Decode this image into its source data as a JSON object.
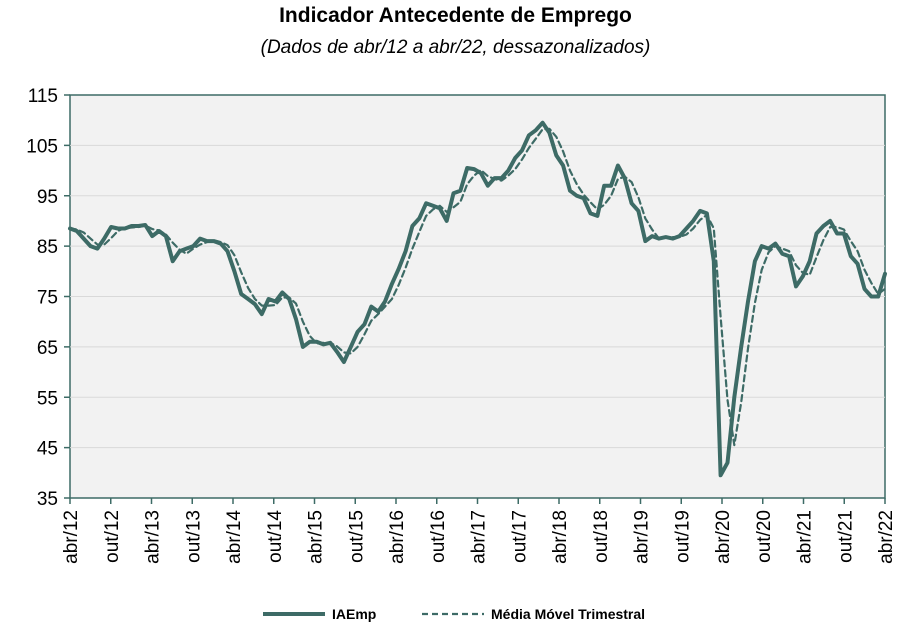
{
  "chart_data": {
    "type": "line",
    "title": "Indicador Antecedente de Emprego",
    "subtitle": "(Dados de abr/12 a abr/22, dessazonalizados)",
    "xlabel": "",
    "ylabel": "",
    "ylim": [
      35,
      115
    ],
    "yticks": [
      35,
      45,
      55,
      65,
      75,
      85,
      95,
      105,
      115
    ],
    "xtick_labels": [
      "abr/12",
      "out/12",
      "abr/13",
      "out/13",
      "abr/14",
      "out/14",
      "abr/15",
      "out/15",
      "abr/16",
      "out/16",
      "abr/17",
      "out/17",
      "abr/18",
      "out/18",
      "abr/19",
      "out/19",
      "abr/20",
      "out/20",
      "abr/21",
      "out/21",
      "abr/22"
    ],
    "grid": true,
    "legend_position": "bottom",
    "colors": {
      "series": "#3d6b66",
      "plot_bg": "#f2f2f2",
      "grid": "#d9d9d9",
      "border": "#3d6b66"
    },
    "series": [
      {
        "name": "IAEmp",
        "style": "solid",
        "values": [
          88.5,
          88.0,
          86.5,
          85.0,
          84.5,
          86.5,
          88.8,
          88.5,
          88.5,
          89.0,
          89.0,
          89.2,
          87.0,
          88.0,
          87.0,
          82.0,
          84.0,
          84.5,
          85.0,
          86.5,
          86.0,
          86.0,
          85.5,
          84.0,
          80.0,
          75.5,
          74.5,
          73.5,
          71.5,
          74.5,
          74.0,
          75.8,
          74.5,
          70.5,
          65.0,
          66.0,
          66.0,
          65.5,
          65.8,
          64.0,
          62.0,
          65.0,
          68.0,
          69.5,
          73.0,
          72.0,
          74.0,
          77.5,
          80.5,
          84.0,
          89.0,
          90.5,
          93.5,
          93.0,
          92.5,
          90.0,
          95.5,
          96.0,
          100.5,
          100.3,
          99.5,
          97.0,
          98.5,
          98.5,
          100.0,
          102.5,
          104.0,
          107.0,
          108.0,
          109.5,
          107.5,
          103.0,
          101.0,
          96.0,
          95.0,
          94.5,
          91.5,
          91.0,
          97.0,
          97.0,
          101.0,
          98.5,
          93.5,
          92.0,
          86.0,
          87.0,
          86.5,
          86.8,
          86.5,
          87.0,
          88.5,
          90.0,
          92.0,
          91.5,
          82.0,
          39.5,
          42.0,
          55.0,
          65.0,
          74.0,
          82.0,
          85.0,
          84.5,
          85.5,
          83.5,
          83.0,
          77.0,
          79.0,
          82.0,
          87.5,
          89.0,
          90.0,
          87.5,
          87.5,
          83.0,
          81.5,
          76.5,
          75.0,
          75.0,
          79.5
        ]
      },
      {
        "name": "Média Móvel Trimestral",
        "style": "dashed",
        "values": [
          88.5,
          88.3,
          87.7,
          86.5,
          85.3,
          85.3,
          86.6,
          88.0,
          88.6,
          88.7,
          88.8,
          89.1,
          88.4,
          88.1,
          87.3,
          85.7,
          84.3,
          83.5,
          84.5,
          85.3,
          85.8,
          86.2,
          85.8,
          85.2,
          83.2,
          79.8,
          76.7,
          74.5,
          73.2,
          73.2,
          73.3,
          74.8,
          74.8,
          73.6,
          70.0,
          67.2,
          65.7,
          65.8,
          65.8,
          65.1,
          63.9,
          63.7,
          65.0,
          67.5,
          70.2,
          71.5,
          73.0,
          74.5,
          77.3,
          80.7,
          84.5,
          87.8,
          91.0,
          92.3,
          93.0,
          91.8,
          92.7,
          93.8,
          97.3,
          99.0,
          100.1,
          98.9,
          98.3,
          98.0,
          99.0,
          100.3,
          102.2,
          104.5,
          106.3,
          108.2,
          108.3,
          106.7,
          103.8,
          100.0,
          97.3,
          95.2,
          93.7,
          92.3,
          93.2,
          95.0,
          98.3,
          98.8,
          97.7,
          94.7,
          90.5,
          88.3,
          86.5,
          86.8,
          86.8,
          86.8,
          87.3,
          88.5,
          90.2,
          91.2,
          88.5,
          71.0,
          54.5,
          45.5,
          54.0,
          64.7,
          73.7,
          80.3,
          83.8,
          85.0,
          84.5,
          84.0,
          81.2,
          79.7,
          79.3,
          82.8,
          86.2,
          88.8,
          88.8,
          88.3,
          86.0,
          84.0,
          80.3,
          77.7,
          75.5,
          76.5
        ]
      }
    ]
  }
}
